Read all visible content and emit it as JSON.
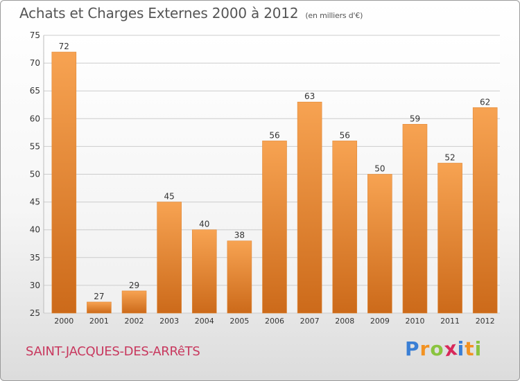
{
  "title": "Achats et Charges Externes 2000 à 2012",
  "unit": "(en milliers d'€)",
  "commune": "SAINT-JACQUES-DES-ARRêTS",
  "logo": {
    "letters": [
      {
        "char": "P",
        "color": "#3a7fd5"
      },
      {
        "char": "r",
        "color": "#f29222"
      },
      {
        "char": "o",
        "color": "#8ac43f"
      },
      {
        "char": "x",
        "color": "#d8285a"
      },
      {
        "char": "i",
        "color": "#3a7fd5"
      },
      {
        "char": "t",
        "color": "#f29222"
      },
      {
        "char": "i",
        "color": "#8ac43f"
      }
    ]
  },
  "colors": {
    "bar_top": "#f7a352",
    "bar_bottom": "#cc6a1a",
    "grid": "#cccccc",
    "axis_text": "#333333"
  },
  "chart_data": {
    "type": "bar",
    "categories": [
      "2000",
      "2001",
      "2002",
      "2003",
      "2004",
      "2005",
      "2006",
      "2007",
      "2008",
      "2009",
      "2010",
      "2011",
      "2012"
    ],
    "values": [
      72,
      27,
      29,
      45,
      40,
      38,
      56,
      63,
      56,
      50,
      59,
      52,
      62
    ],
    "ylim": [
      25,
      75
    ],
    "yticks": [
      25,
      30,
      35,
      40,
      45,
      50,
      55,
      60,
      65,
      70,
      75
    ],
    "grid": true,
    "legend": "none"
  }
}
